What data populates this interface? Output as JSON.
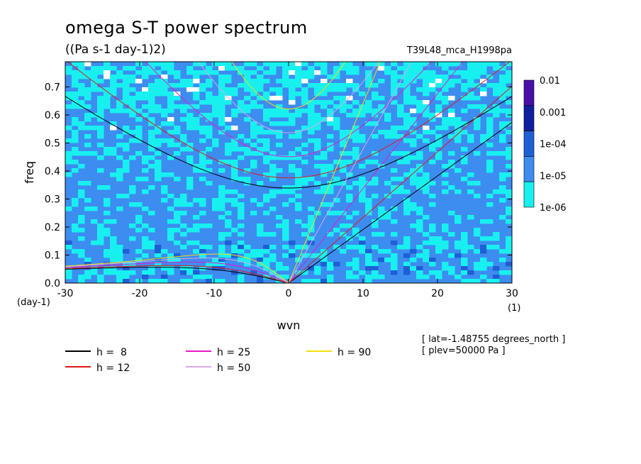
{
  "chart_data": {
    "type": "heatmap",
    "title": "omega S-T power spectrum",
    "subtitle": "((Pa s-1 day-1)2)",
    "run_label": "T39L48_mca_H1998pa",
    "xlabel": "wvn",
    "ylabel": "freq",
    "x_unit": "(1)",
    "y_unit": "(day-1)",
    "xlim": [
      -30,
      30
    ],
    "ylim": [
      0,
      0.79
    ],
    "x_ticks": [
      "-30",
      "-20",
      "-10",
      "0",
      "10",
      "20",
      "30"
    ],
    "x_tick_values": [
      -30,
      -20,
      -10,
      0,
      10,
      20,
      30
    ],
    "y_ticks": [
      "0.0",
      "0.1",
      "0.2",
      "0.3",
      "0.4",
      "0.5",
      "0.6",
      "0.7"
    ],
    "y_tick_values": [
      0,
      0.1,
      0.2,
      0.3,
      0.4,
      0.5,
      0.6,
      0.7
    ],
    "colorbar": {
      "levels": [
        "0.01",
        "0.001",
        "1e-04",
        "1e-05",
        "1e-06"
      ],
      "colors": [
        "#4a0fa8",
        "#0f1f9e",
        "#1f5fd6",
        "#3d8cf0",
        "#18f0f0"
      ]
    },
    "dispersion_curves": [
      {
        "name": "h =  8",
        "color": "#000000",
        "equivalent_depth": 8
      },
      {
        "name": "h = 12",
        "color": "#e01818",
        "equivalent_depth": 12
      },
      {
        "name": "h = 25",
        "color": "#e818c8",
        "equivalent_depth": 25
      },
      {
        "name": "h = 50",
        "color": "#d8a8e8",
        "equivalent_depth": 50
      },
      {
        "name": "h = 90",
        "color": "#f0e010",
        "equivalent_depth": 90
      }
    ],
    "annotations": [
      "[ lat=-1.48755 degrees_north ]",
      "[ plev=50000 Pa ]"
    ],
    "grid": false
  }
}
